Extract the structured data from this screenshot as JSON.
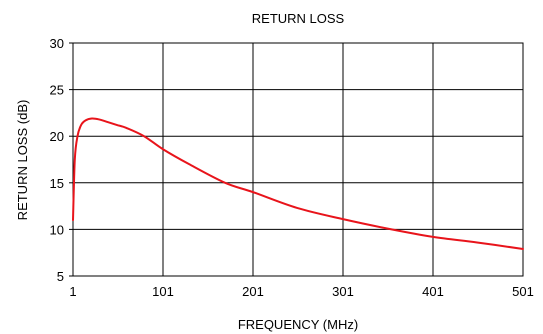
{
  "chart_data": {
    "type": "line",
    "title": "RETURN LOSS",
    "xlabel": "FREQUENCY (MHz)",
    "ylabel": "RETURN LOSS (dB)",
    "xlim": [
      1,
      501
    ],
    "ylim": [
      5,
      30
    ],
    "xticks": [
      1,
      101,
      201,
      301,
      401,
      501
    ],
    "yticks": [
      5,
      10,
      15,
      20,
      25,
      30
    ],
    "grid": true,
    "legend": "none",
    "series": [
      {
        "color": "#e8141b",
        "x": [
          1,
          3,
          6,
          10,
          15,
          22,
          30,
          40,
          50,
          60,
          80,
          101,
          130,
          170,
          201,
          250,
          301,
          350,
          401,
          450,
          501
        ],
        "y": [
          11,
          17.5,
          20,
          21.2,
          21.7,
          21.9,
          21.8,
          21.5,
          21.2,
          20.9,
          20,
          18.6,
          17,
          15,
          14,
          12.3,
          11.1,
          10.1,
          9.2,
          8.6,
          7.9
        ]
      }
    ]
  }
}
